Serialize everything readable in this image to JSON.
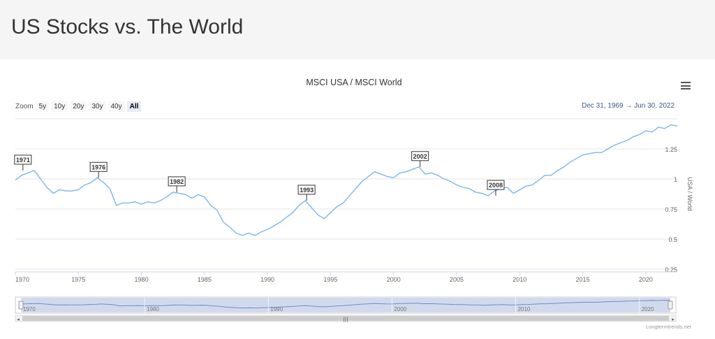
{
  "page": {
    "title": "US Stocks vs. The World"
  },
  "toolbar": {
    "zoom_label": "Zoom",
    "zoom_buttons": [
      "5y",
      "10y",
      "20y",
      "30y",
      "40y",
      "All"
    ],
    "active": "All",
    "range_from": "Dec 31, 1969",
    "range_arrow": "→",
    "range_to": "Jun 30, 2022",
    "menu_icon": "hamburger-menu-icon"
  },
  "credit": "Longtermtrends.net",
  "colors": {
    "line": "#7cb5ec",
    "navigator_fill": "#ccd6eb",
    "header_bg": "#f5f5f5"
  },
  "chart_data": {
    "type": "line",
    "title": "MSCI USA / MSCI World",
    "ylabel": "USA / World",
    "xlabel": "",
    "xlim": [
      1970,
      2022.5
    ],
    "ylim": [
      0.25,
      1.5
    ],
    "yticks": [
      0.25,
      0.5,
      0.75,
      1,
      1.25
    ],
    "ytick_labels": [
      "0.25",
      "0.5",
      "0.75",
      "1",
      "1.25"
    ],
    "xticks": [
      1970,
      1975,
      1980,
      1985,
      1990,
      1995,
      2000,
      2005,
      2010,
      2015,
      2020
    ],
    "navigator_ticks": [
      1970,
      1980,
      1990,
      2000,
      2010,
      2020
    ],
    "grid": true,
    "legend": "none",
    "series": [
      {
        "x": [
          1970,
          1970.5,
          1971,
          1971.5,
          1972,
          1972.5,
          1973,
          1973.5,
          1974,
          1974.5,
          1975,
          1975.5,
          1976,
          1976.5,
          1977,
          1977.5,
          1978,
          1978.5,
          1979,
          1979.5,
          1980,
          1980.5,
          1981,
          1981.5,
          1982,
          1982.5,
          1983,
          1983.5,
          1984,
          1984.5,
          1985,
          1985.5,
          1986,
          1986.5,
          1987,
          1987.5,
          1988,
          1988.5,
          1989,
          1989.5,
          1990,
          1990.5,
          1991,
          1991.5,
          1992,
          1992.5,
          1993,
          1993.5,
          1994,
          1994.5,
          1995,
          1995.5,
          1996,
          1996.5,
          1997,
          1997.5,
          1998,
          1998.5,
          1999,
          1999.5,
          2000,
          2000.5,
          2001,
          2001.5,
          2002,
          2002.5,
          2003,
          2003.5,
          2004,
          2004.5,
          2005,
          2005.5,
          2006,
          2006.5,
          2007,
          2007.5,
          2008,
          2008.5,
          2009,
          2009.5,
          2010,
          2010.5,
          2011,
          2011.5,
          2012,
          2012.5,
          2013,
          2013.5,
          2014,
          2014.5,
          2015,
          2015.5,
          2016,
          2016.5,
          2017,
          2017.5,
          2018,
          2018.5,
          2019,
          2019.5,
          2020,
          2020.5,
          2021,
          2021.5,
          2022,
          2022.5
        ],
        "values": [
          0.99,
          1.03,
          1.05,
          1.07,
          1.0,
          0.93,
          0.88,
          0.91,
          0.9,
          0.9,
          0.91,
          0.95,
          0.97,
          1.01,
          0.97,
          0.92,
          0.78,
          0.8,
          0.8,
          0.81,
          0.79,
          0.81,
          0.8,
          0.82,
          0.85,
          0.89,
          0.88,
          0.87,
          0.84,
          0.87,
          0.85,
          0.78,
          0.74,
          0.64,
          0.6,
          0.55,
          0.53,
          0.55,
          0.53,
          0.56,
          0.58,
          0.61,
          0.64,
          0.68,
          0.72,
          0.78,
          0.82,
          0.76,
          0.7,
          0.67,
          0.72,
          0.77,
          0.8,
          0.86,
          0.92,
          0.98,
          1.02,
          1.06,
          1.04,
          1.02,
          1.01,
          1.05,
          1.06,
          1.08,
          1.1,
          1.04,
          1.05,
          1.03,
          1.0,
          0.98,
          0.95,
          0.93,
          0.92,
          0.89,
          0.88,
          0.86,
          0.9,
          0.92,
          0.93,
          0.88,
          0.91,
          0.94,
          0.95,
          0.99,
          1.03,
          1.03,
          1.07,
          1.1,
          1.14,
          1.17,
          1.2,
          1.21,
          1.22,
          1.22,
          1.25,
          1.28,
          1.3,
          1.32,
          1.35,
          1.37,
          1.4,
          1.39,
          1.43,
          1.42,
          1.45,
          1.44
        ]
      }
    ],
    "annotations": [
      {
        "label": "1971",
        "x": 1970.6,
        "y": 1.07
      },
      {
        "label": "1976",
        "x": 1976.6,
        "y": 1.01
      },
      {
        "label": "1982",
        "x": 1982.8,
        "y": 0.89
      },
      {
        "label": "1993",
        "x": 1993.1,
        "y": 0.82
      },
      {
        "label": "2002",
        "x": 2002.1,
        "y": 1.1
      },
      {
        "label": "2008",
        "x": 2008.1,
        "y": 0.86
      }
    ]
  }
}
